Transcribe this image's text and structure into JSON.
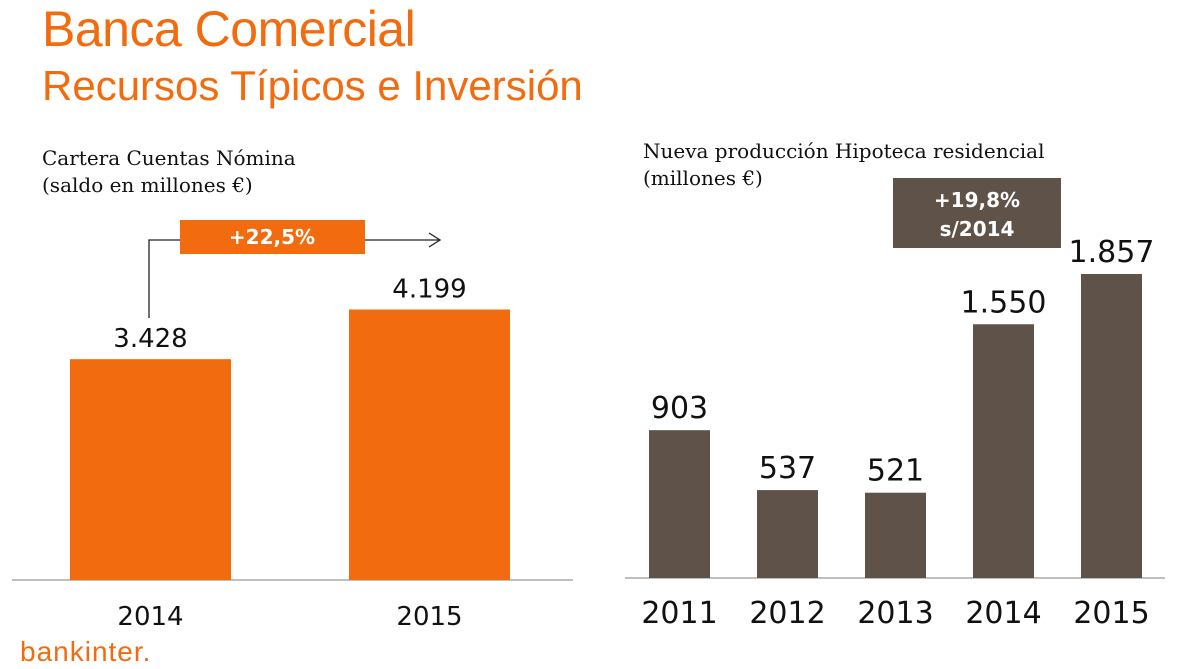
{
  "title": "Banca Comercial",
  "subtitle": "Recursos Típicos e Inversión",
  "logo": "bankinter.",
  "chart_data": [
    {
      "type": "bar",
      "title": "Cartera Cuentas Nómina",
      "subtitle": "(saldo en millones €)",
      "categories": [
        "2014",
        "2015"
      ],
      "values": [
        3428,
        4199
      ],
      "data_labels": [
        "3.428",
        "4.199"
      ],
      "annotation": "+22,5%",
      "color": "#f26b0f",
      "ylim": [
        0,
        4300
      ],
      "grid": false
    },
    {
      "type": "bar",
      "title": "Nueva producción Hipoteca residencial",
      "subtitle": "(millones €)",
      "categories": [
        "2011",
        "2012",
        "2013",
        "2014",
        "2015"
      ],
      "values": [
        903,
        537,
        521,
        1550,
        1857
      ],
      "data_labels": [
        "903",
        "537",
        "521",
        "1.550",
        "1.857"
      ],
      "annotation": [
        "+19,8%",
        "s/2014"
      ],
      "color": "#5f5249",
      "ylim": [
        0,
        1857
      ],
      "grid": false
    }
  ]
}
